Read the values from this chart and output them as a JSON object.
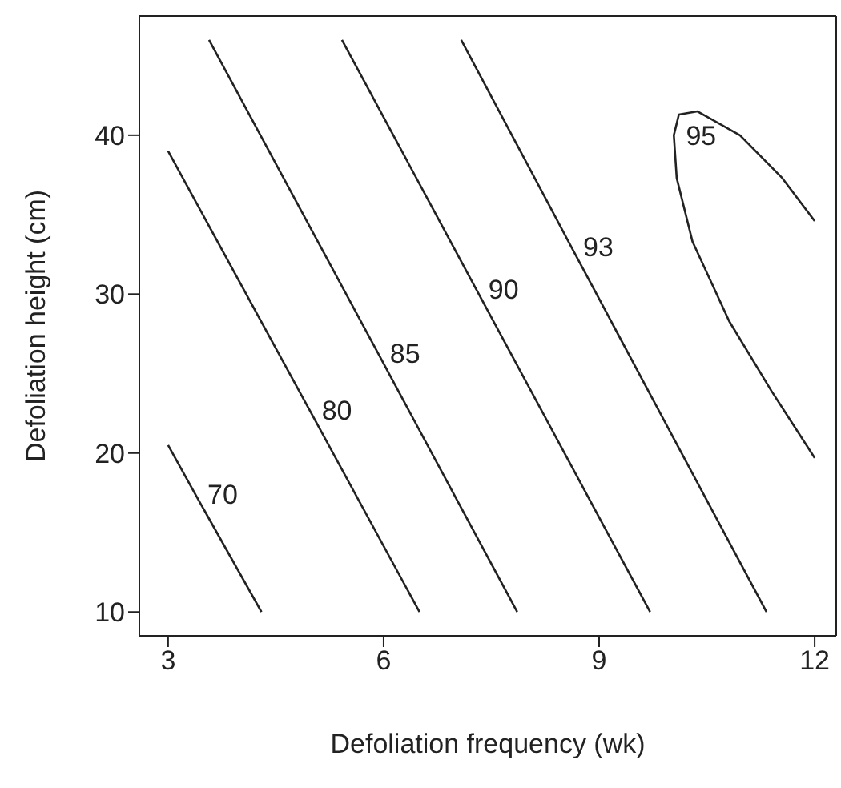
{
  "chart_data": {
    "type": "line",
    "xlabel": "Defoliation frequency (wk)",
    "ylabel": "Defoliation height (cm)",
    "xlim": [
      2.6,
      12.3
    ],
    "ylim": [
      8.5,
      47.5
    ],
    "xticks": [
      3,
      6,
      9,
      12
    ],
    "yticks": [
      10,
      20,
      30,
      40
    ],
    "marker": "none",
    "line_style": "solid",
    "series": [
      {
        "name": "70",
        "color": "#222222",
        "x": [
          3,
          3.38,
          4.3
        ],
        "values": [
          20.5,
          17.4,
          10
        ]
      },
      {
        "name": "80",
        "color": "#222222",
        "x": [
          3,
          4.97,
          6.5
        ],
        "values": [
          39,
          22.7,
          10
        ]
      },
      {
        "name": "85",
        "color": "#222222",
        "x": [
          3.57,
          5.92,
          7.86
        ],
        "values": [
          46,
          26.3,
          10
        ]
      },
      {
        "name": "90",
        "color": "#222222",
        "x": [
          5.42,
          7.29,
          9.71
        ],
        "values": [
          46,
          30.3,
          10
        ]
      },
      {
        "name": "93",
        "color": "#222222",
        "x": [
          7.08,
          8.61,
          11.33
        ],
        "values": [
          46,
          33,
          10
        ]
      },
      {
        "name": "95",
        "color": "#222222",
        "x": [
          12,
          11.55,
          10.96,
          10.37,
          10.11,
          10.04,
          10.08,
          10.3,
          10.81,
          11.4,
          12
        ],
        "values": [
          34.6,
          37.3,
          40,
          41.5,
          41.3,
          40,
          37.3,
          33.3,
          28.3,
          23.9,
          19.7
        ]
      }
    ]
  }
}
